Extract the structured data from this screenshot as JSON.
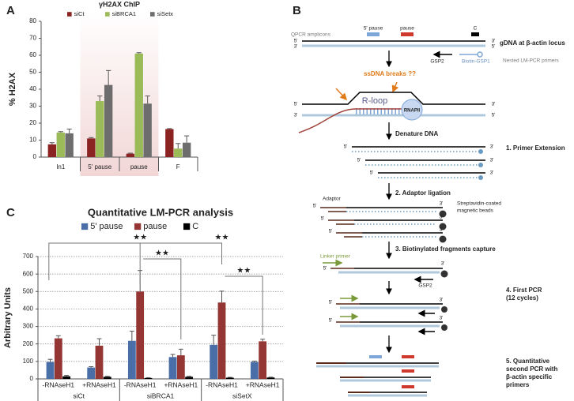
{
  "panels": {
    "a": "A",
    "b": "B",
    "c": "C"
  },
  "chart_data": [
    {
      "type": "bar",
      "title": "γH2AX ChIP",
      "y_label": "% H2AX",
      "categories": [
        "In1",
        "5' pause",
        "pause",
        "F"
      ],
      "series": [
        {
          "name": "siCt",
          "color": "#8b2323",
          "values": [
            7.5,
            11,
            2,
            16.5
          ],
          "errors": [
            1,
            0.5,
            0.3,
            0.3
          ]
        },
        {
          "name": "siBRCA1",
          "color": "#9bbb59",
          "values": [
            14.5,
            33,
            61,
            5
          ],
          "errors": [
            0.5,
            3,
            0.5,
            3
          ]
        },
        {
          "name": "siSetx",
          "color": "#6d6d6d",
          "values": [
            14,
            42.5,
            31.5,
            8.5
          ],
          "errors": [
            2.5,
            8.5,
            4.5,
            4
          ]
        }
      ],
      "ylim": [
        0,
        80
      ],
      "yticks": [
        0,
        10,
        20,
        30,
        40,
        50,
        60,
        70,
        80
      ],
      "grid": false,
      "legend": "top"
    },
    {
      "type": "bar",
      "title": "Quantitative LM-PCR analysis",
      "y_label": "Arbitrary Units",
      "categories": [
        "-RNAseH1",
        "+RNAseH1",
        "-RNAseH1",
        "+RNAseH1",
        "-RNAseH1",
        "+RNAseH1"
      ],
      "groups": [
        "siCt",
        "siBRCA1",
        "siSetX"
      ],
      "series": [
        {
          "name": "5' pause",
          "color": "#4a6fa8",
          "values": [
            97,
            65,
            218,
            125,
            195,
            97
          ],
          "errors": [
            15,
            5,
            55,
            15,
            55,
            5
          ]
        },
        {
          "name": "pause",
          "color": "#943634",
          "values": [
            232,
            190,
            500,
            135,
            437,
            215
          ],
          "errors": [
            15,
            40,
            120,
            35,
            65,
            12
          ]
        },
        {
          "name": "C",
          "color": "#000000",
          "values": [
            15,
            12,
            5,
            12,
            7,
            8
          ],
          "errors": [
            5,
            3,
            2,
            3,
            2,
            2
          ]
        }
      ],
      "ylim": [
        0,
        700
      ],
      "yticks": [
        0,
        100,
        200,
        300,
        400,
        500,
        600,
        700
      ],
      "grid": true,
      "legend": "top",
      "annotations": [
        "★★",
        "★★",
        "★★",
        "★★"
      ]
    }
  ],
  "diagram": {
    "amplicons_label": "QPCR amplicons",
    "amplicon_5pause": "5' pause",
    "amplicon_pause": "pause",
    "amplicon_c": "C",
    "end5": "5'",
    "end3": "3'",
    "gdna": "gDNA at β-actin locus",
    "gsp2": "GSP2",
    "biotin_gsp1": "Biotin-GSP1",
    "nested": "Nested LM-PCR primers",
    "breaks": "ssDNA breaks ??",
    "rloop": "R-loop",
    "rnapii": "RNAPII",
    "denature": "Denature DNA",
    "step1": "1. Primer Extension",
    "step2": "2. Adaptor ligation",
    "adaptor": "Adaptor",
    "beads": [
      "Streptavidin-coated",
      "magnetic beads"
    ],
    "step3": "3. Biotinylated fragments capture",
    "linker": "Linker primer",
    "step4": [
      "4. First PCR",
      "(12 cycles)"
    ],
    "step5": [
      "5. Quantitative",
      "second PCR with",
      "β-actin specific",
      "primers"
    ]
  }
}
